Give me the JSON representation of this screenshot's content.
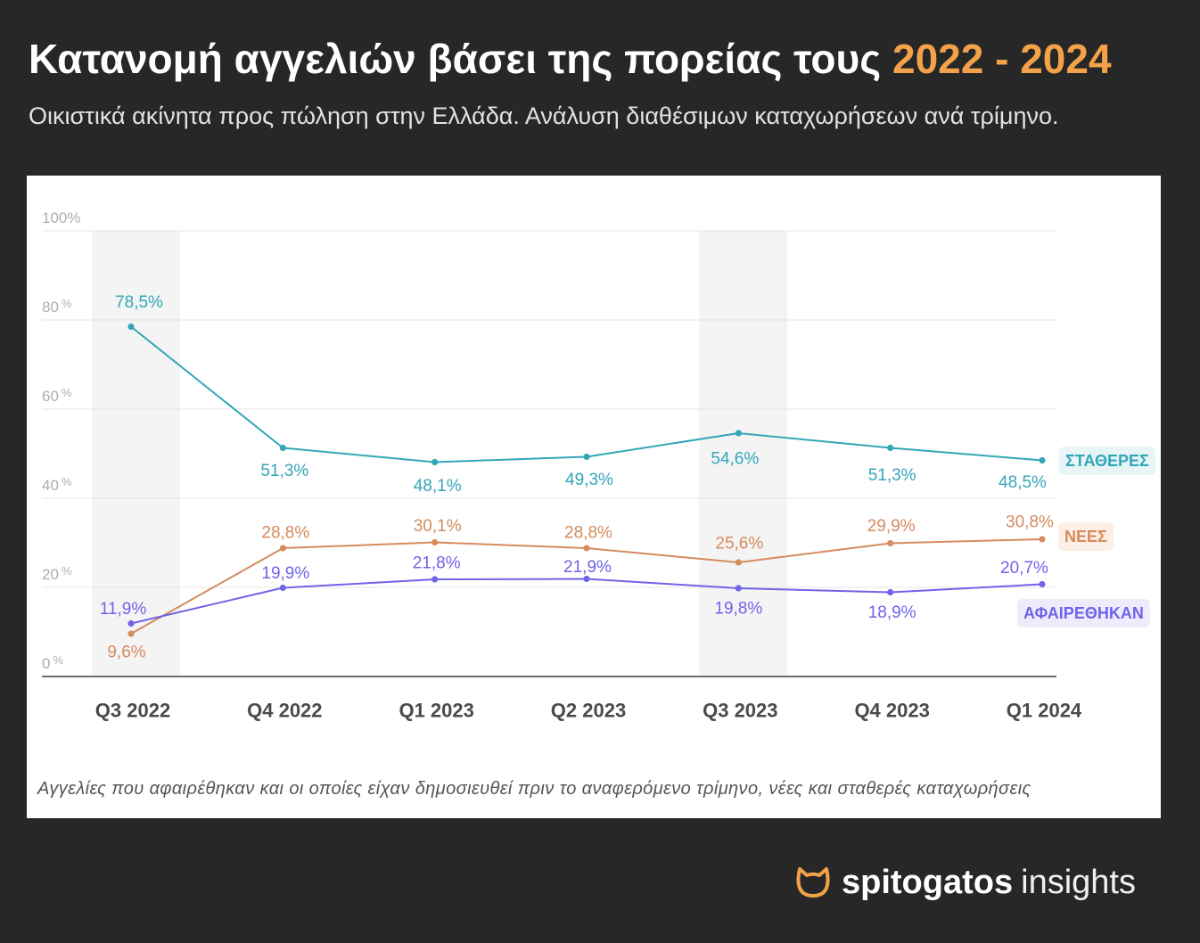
{
  "header": {
    "title": "Κατανομή αγγελιών βάσει της πορείας τους",
    "title_highlight": "2022 - 2024",
    "subtitle": "Οικιστικά ακίνητα προς πώληση στην Ελλάδα. Ανάλυση διαθέσιμων καταχωρήσεων ανά τρίμηνο."
  },
  "footnote": "Αγγελίες που αφαιρέθηκαν και οι οποίες είχαν δημοσιευθεί πριν το αναφερόμενο τρίμηνο, νέες και σταθερές καταχωρήσεις",
  "brand": {
    "icon": "cat-icon",
    "name": "spitogatos",
    "suffix": "insights",
    "icon_color": "#f3a24a"
  },
  "colors": {
    "background": "#272727",
    "accent": "#f3a24a",
    "panel": "#ffffff"
  },
  "chart_data": {
    "type": "line",
    "categories": [
      "Q3 2022",
      "Q4 2022",
      "Q1 2023",
      "Q2 2023",
      "Q3 2023",
      "Q4 2023",
      "Q1 2024"
    ],
    "highlighted_categories": [
      "Q3 2022",
      "Q3 2023"
    ],
    "ylim": [
      0,
      100
    ],
    "yticks": [
      0,
      20,
      40,
      60,
      80,
      100
    ],
    "yunit": "%",
    "grid": true,
    "legend": "inline-right",
    "series": [
      {
        "name": "ΣΤΑΘΕΡΕΣ",
        "color": "#33a6b8",
        "values": [
          78.5,
          51.3,
          48.1,
          49.3,
          54.6,
          51.3,
          48.5
        ],
        "labels": [
          "78,5%",
          "51,3%",
          "48,1%",
          "49,3%",
          "54,6%",
          "51,3%",
          "48,5%"
        ]
      },
      {
        "name": "ΝΕΕΣ",
        "color": "#d58b5e",
        "values": [
          9.6,
          28.8,
          30.1,
          28.8,
          25.6,
          29.9,
          30.8
        ],
        "labels": [
          "9,6%",
          "28,8%",
          "30,1%",
          "28,8%",
          "25,6%",
          "29,9%",
          "30,8%"
        ]
      },
      {
        "name": "ΑΦΑΙΡΕΘΗΚΑΝ",
        "color": "#7063e8",
        "values": [
          11.9,
          19.9,
          21.8,
          21.9,
          19.8,
          18.9,
          20.7
        ],
        "labels": [
          "11,9%",
          "19,9%",
          "21,8%",
          "21,9%",
          "19,8%",
          "18,9%",
          "20,7%"
        ]
      }
    ]
  }
}
